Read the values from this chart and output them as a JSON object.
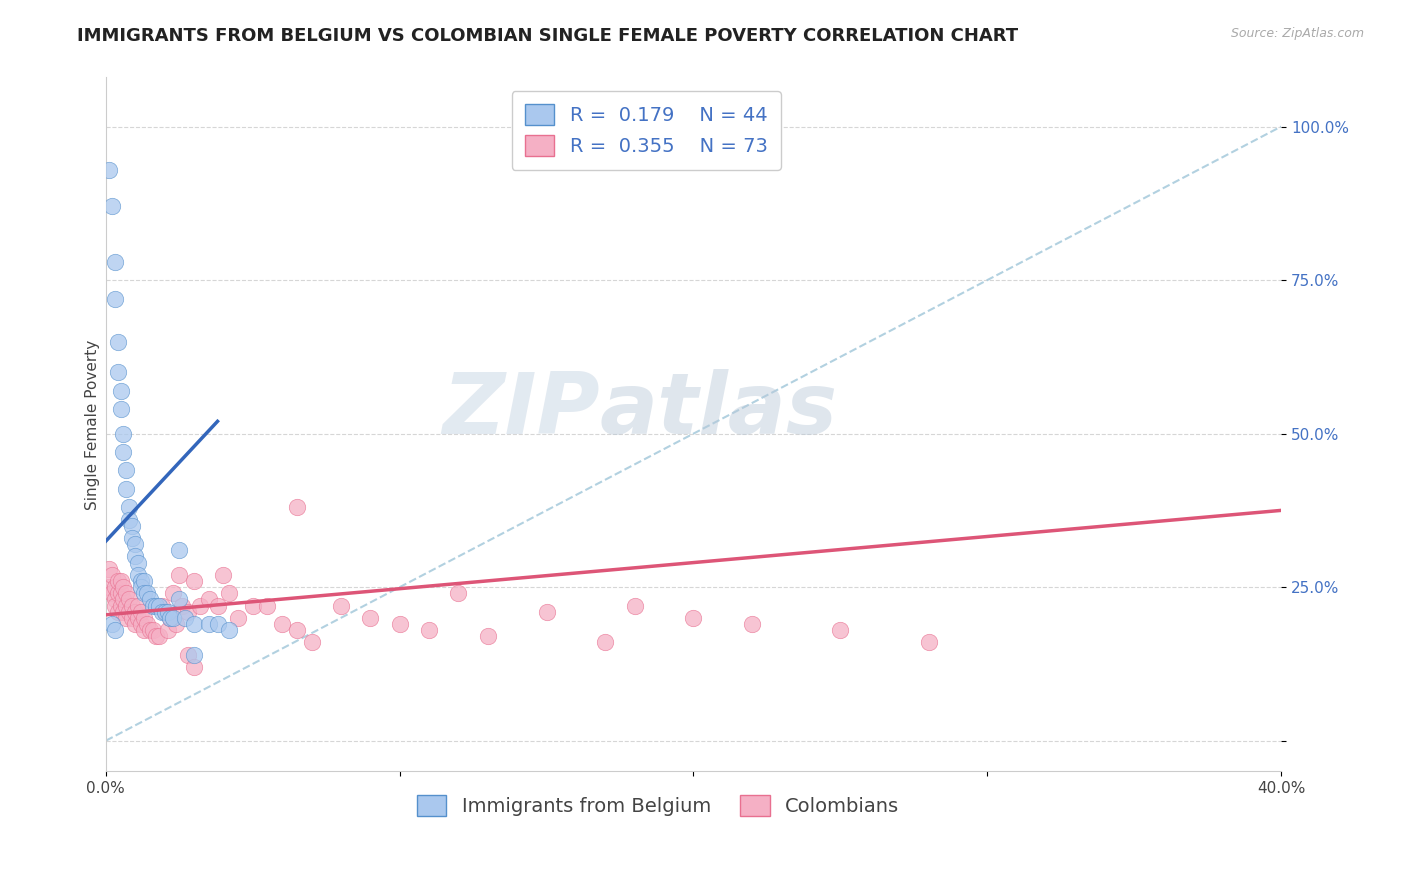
{
  "title": "IMMIGRANTS FROM BELGIUM VS COLOMBIAN SINGLE FEMALE POVERTY CORRELATION CHART",
  "source": "Source: ZipAtlas.com",
  "ylabel": "Single Female Poverty",
  "x_min": 0.0,
  "x_max": 0.4,
  "y_min": -0.05,
  "y_max": 1.08,
  "x_ticks": [
    0.0,
    0.1,
    0.2,
    0.3,
    0.4
  ],
  "x_tick_labels": [
    "0.0%",
    "",
    "",
    "",
    "40.0%"
  ],
  "y_ticks": [
    0.0,
    0.25,
    0.5,
    0.75,
    1.0
  ],
  "y_tick_labels": [
    "",
    "25.0%",
    "50.0%",
    "75.0%",
    "100.0%"
  ],
  "legend_labels": [
    "Immigrants from Belgium",
    "Colombians"
  ],
  "blue_R": 0.179,
  "blue_N": 44,
  "pink_R": 0.355,
  "pink_N": 73,
  "blue_color": "#aac8ee",
  "pink_color": "#f5b0c5",
  "blue_edge_color": "#5590cc",
  "pink_edge_color": "#e87090",
  "blue_line_color": "#3366bb",
  "pink_line_color": "#dd5577",
  "diag_color": "#aaccdd",
  "blue_scatter_x": [
    0.001,
    0.002,
    0.003,
    0.003,
    0.004,
    0.004,
    0.005,
    0.005,
    0.006,
    0.006,
    0.007,
    0.007,
    0.008,
    0.008,
    0.009,
    0.009,
    0.01,
    0.01,
    0.011,
    0.011,
    0.012,
    0.012,
    0.013,
    0.013,
    0.014,
    0.015,
    0.016,
    0.017,
    0.018,
    0.019,
    0.02,
    0.021,
    0.022,
    0.023,
    0.025,
    0.027,
    0.03,
    0.035,
    0.038,
    0.042,
    0.002,
    0.003,
    0.025,
    0.03
  ],
  "blue_scatter_y": [
    0.93,
    0.87,
    0.72,
    0.78,
    0.65,
    0.6,
    0.57,
    0.54,
    0.5,
    0.47,
    0.44,
    0.41,
    0.38,
    0.36,
    0.35,
    0.33,
    0.32,
    0.3,
    0.29,
    0.27,
    0.26,
    0.25,
    0.26,
    0.24,
    0.24,
    0.23,
    0.22,
    0.22,
    0.22,
    0.21,
    0.21,
    0.21,
    0.2,
    0.2,
    0.31,
    0.2,
    0.19,
    0.19,
    0.19,
    0.18,
    0.19,
    0.18,
    0.23,
    0.14
  ],
  "pink_scatter_x": [
    0.001,
    0.001,
    0.002,
    0.002,
    0.003,
    0.003,
    0.003,
    0.004,
    0.004,
    0.004,
    0.005,
    0.005,
    0.005,
    0.006,
    0.006,
    0.006,
    0.007,
    0.007,
    0.007,
    0.008,
    0.008,
    0.009,
    0.009,
    0.01,
    0.01,
    0.011,
    0.011,
    0.012,
    0.012,
    0.013,
    0.013,
    0.014,
    0.015,
    0.016,
    0.017,
    0.018,
    0.019,
    0.02,
    0.021,
    0.022,
    0.023,
    0.024,
    0.025,
    0.026,
    0.028,
    0.03,
    0.032,
    0.035,
    0.038,
    0.04,
    0.042,
    0.045,
    0.05,
    0.055,
    0.06,
    0.065,
    0.07,
    0.08,
    0.09,
    0.1,
    0.11,
    0.12,
    0.13,
    0.15,
    0.17,
    0.18,
    0.2,
    0.22,
    0.25,
    0.28,
    0.065,
    0.028,
    0.03
  ],
  "pink_scatter_y": [
    0.25,
    0.28,
    0.24,
    0.27,
    0.23,
    0.25,
    0.22,
    0.21,
    0.24,
    0.26,
    0.22,
    0.24,
    0.26,
    0.21,
    0.23,
    0.25,
    0.2,
    0.22,
    0.24,
    0.21,
    0.23,
    0.2,
    0.22,
    0.19,
    0.21,
    0.2,
    0.22,
    0.19,
    0.21,
    0.18,
    0.2,
    0.19,
    0.18,
    0.18,
    0.17,
    0.17,
    0.22,
    0.21,
    0.18,
    0.2,
    0.24,
    0.19,
    0.27,
    0.22,
    0.21,
    0.26,
    0.22,
    0.23,
    0.22,
    0.27,
    0.24,
    0.2,
    0.22,
    0.22,
    0.19,
    0.18,
    0.16,
    0.22,
    0.2,
    0.19,
    0.18,
    0.24,
    0.17,
    0.21,
    0.16,
    0.22,
    0.2,
    0.19,
    0.18,
    0.16,
    0.38,
    0.14,
    0.12
  ],
  "blue_line_x": [
    0.0,
    0.038
  ],
  "blue_line_y": [
    0.325,
    0.52
  ],
  "pink_line_x": [
    0.0,
    0.4
  ],
  "pink_line_y": [
    0.205,
    0.375
  ],
  "watermark_zip": "ZIP",
  "watermark_atlas": "atlas",
  "background_color": "#ffffff",
  "grid_color": "#cccccc",
  "title_fontsize": 13,
  "axis_label_fontsize": 11,
  "tick_fontsize": 11,
  "legend_fontsize": 14
}
